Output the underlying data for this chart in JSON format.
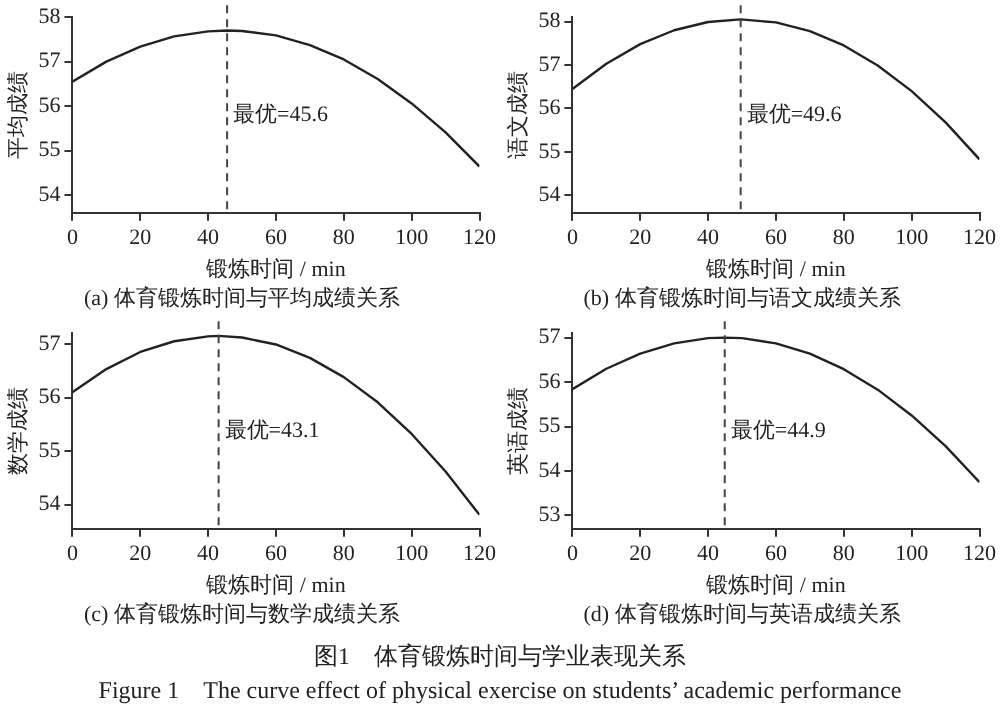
{
  "chart_data": [
    {
      "type": "line",
      "title": "(a) 体育锻炼时间与平均成绩关系",
      "xlabel": "锻炼时间 / min",
      "ylabel": "平均成绩",
      "x": [
        0,
        10,
        20,
        30,
        40,
        45.6,
        50,
        60,
        70,
        80,
        90,
        100,
        110,
        120
      ],
      "series": [
        {
          "color": "#222222",
          "values": [
            56.55,
            57.0,
            57.34,
            57.57,
            57.68,
            57.7,
            57.69,
            57.59,
            57.37,
            57.05,
            56.61,
            56.06,
            55.41,
            54.64
          ]
        }
      ],
      "xlim": [
        0,
        120
      ],
      "xticks": [
        0,
        20,
        40,
        60,
        80,
        100,
        120
      ],
      "ylim": [
        53.6,
        58
      ],
      "yticks": [
        54,
        55,
        56,
        57,
        58
      ],
      "marker": "none",
      "line_style": "solid",
      "ref_lines": [
        {
          "axis": "x",
          "value": 45.6,
          "label": "最优=45.6",
          "line_style": "dashed",
          "color": "#444444"
        }
      ]
    },
    {
      "type": "line",
      "title": "(b) 体育锻炼时间与语文成绩关系",
      "xlabel": "锻炼时间 / min",
      "ylabel": "语文成绩",
      "x": [
        0,
        10,
        20,
        30,
        40,
        49.6,
        60,
        70,
        80,
        90,
        100,
        110,
        120
      ],
      "series": [
        {
          "color": "#222222",
          "values": [
            56.45,
            57.03,
            57.48,
            57.8,
            57.99,
            58.05,
            57.98,
            57.78,
            57.45,
            56.99,
            56.4,
            55.68,
            54.83
          ]
        }
      ],
      "xlim": [
        0,
        120
      ],
      "xticks": [
        0,
        20,
        40,
        60,
        80,
        100,
        120
      ],
      "ylim": [
        53.6,
        58.1
      ],
      "yticks": [
        54,
        55,
        56,
        57,
        58
      ],
      "marker": "none",
      "line_style": "solid",
      "ref_lines": [
        {
          "axis": "x",
          "value": 49.6,
          "label": "最优=49.6",
          "line_style": "dashed",
          "color": "#444444"
        }
      ]
    },
    {
      "type": "line",
      "title": "(c) 体育锻炼时间与数学成绩关系",
      "xlabel": "锻炼时间 / min",
      "ylabel": "数学成绩",
      "x": [
        0,
        10,
        20,
        30,
        40,
        43.1,
        50,
        60,
        70,
        80,
        90,
        100,
        110,
        120
      ],
      "series": [
        {
          "color": "#222222",
          "values": [
            56.1,
            56.53,
            56.85,
            57.05,
            57.14,
            57.15,
            57.12,
            56.99,
            56.74,
            56.38,
            55.91,
            55.32,
            54.62,
            53.81
          ]
        }
      ],
      "xlim": [
        0,
        120
      ],
      "xticks": [
        0,
        20,
        40,
        60,
        80,
        100,
        120
      ],
      "ylim": [
        53.55,
        57.2
      ],
      "yticks": [
        54,
        55,
        56,
        57
      ],
      "marker": "none",
      "line_style": "solid",
      "ref_lines": [
        {
          "axis": "x",
          "value": 43.1,
          "label": "最优=43.1",
          "line_style": "dashed",
          "color": "#444444"
        }
      ]
    },
    {
      "type": "line",
      "title": "(d) 体育锻炼时间与英语成绩关系",
      "xlabel": "锻炼时间 / min",
      "ylabel": "英语成绩",
      "x": [
        0,
        10,
        20,
        30,
        40,
        44.9,
        50,
        60,
        70,
        80,
        90,
        100,
        110,
        120
      ],
      "series": [
        {
          "color": "#222222",
          "values": [
            55.84,
            56.3,
            56.64,
            56.87,
            56.99,
            57.0,
            56.99,
            56.87,
            56.64,
            56.29,
            55.83,
            55.25,
            54.56,
            53.75
          ]
        }
      ],
      "xlim": [
        0,
        120
      ],
      "xticks": [
        0,
        20,
        40,
        60,
        80,
        100,
        120
      ],
      "ylim": [
        52.7,
        57.1
      ],
      "yticks": [
        53,
        54,
        55,
        56,
        57
      ],
      "marker": "none",
      "line_style": "solid",
      "ref_lines": [
        {
          "axis": "x",
          "value": 44.9,
          "label": "最优=44.9",
          "line_style": "dashed",
          "color": "#444444"
        }
      ]
    },
    {
      "type": "other",
      "title": "图1　体育锻炼时间与学业表现关系",
      "annotations": [
        "Figure 1　The curve effect of physical exercise on students’ academic performance"
      ]
    }
  ]
}
